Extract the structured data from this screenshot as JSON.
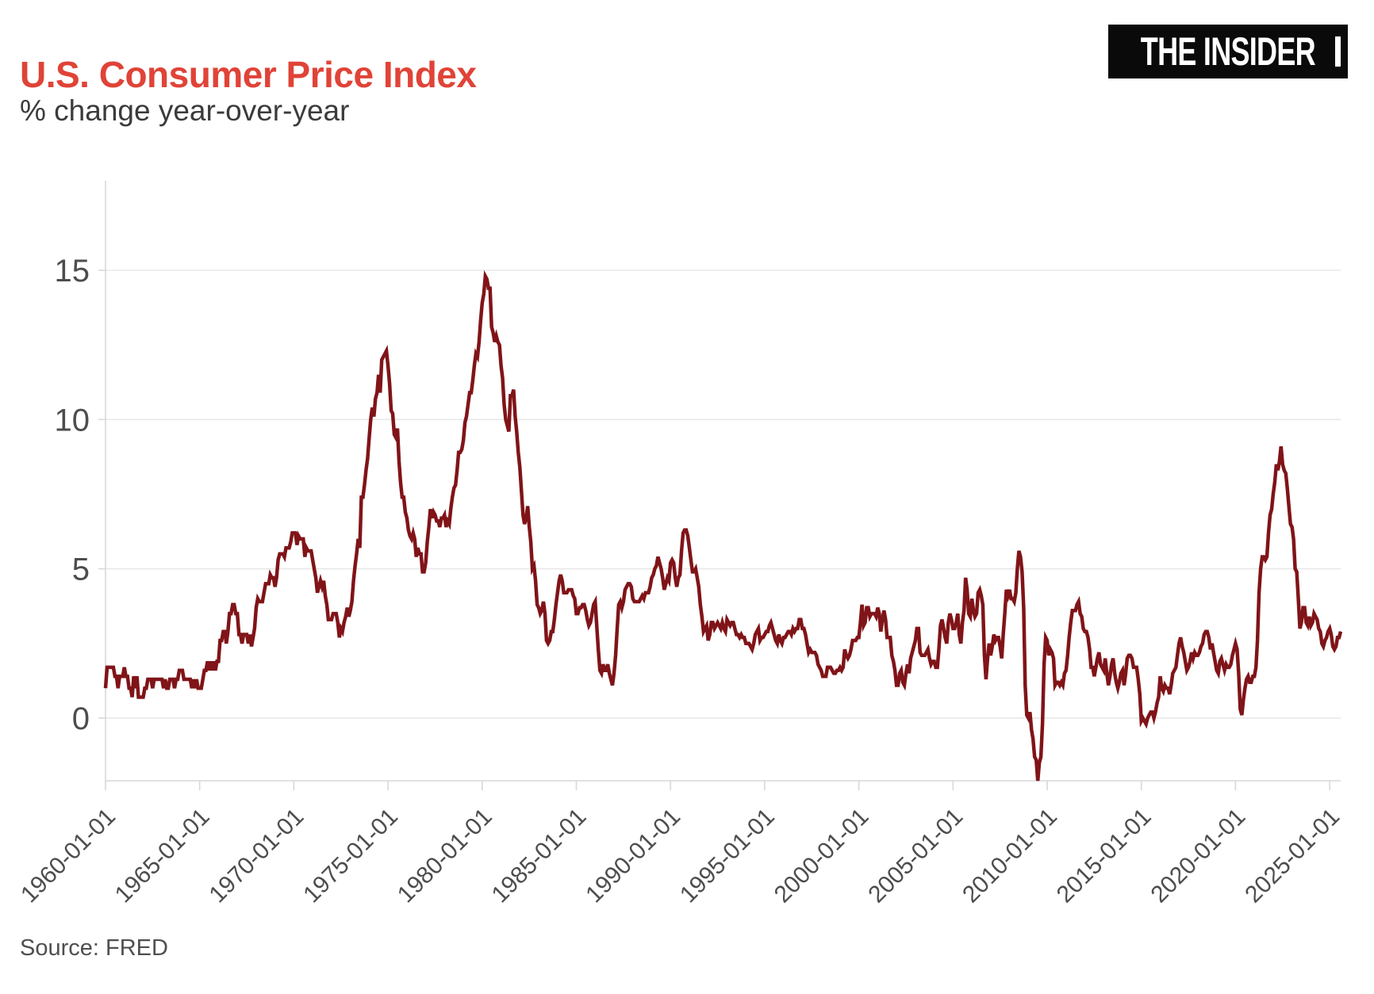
{
  "header": {
    "title": "U.S. Consumer Price Index",
    "subtitle": "% change year-over-year",
    "logo_text": "THE INSIDER"
  },
  "footer": {
    "source": "Source: FRED"
  },
  "colors": {
    "title_red": "#e04337",
    "line_dark_red": "#801418",
    "logo_bg": "#0a0a0a",
    "logo_text": "#ffffff",
    "axis_text": "#4d4d4d",
    "gridline": "#e8e8e8",
    "spine": "#d8d8d8",
    "background": "#ffffff"
  },
  "chart_data": {
    "type": "line",
    "title": "U.S. Consumer Price Index",
    "subtitle": "% change year-over-year",
    "source": "Source: FRED",
    "xlabel": "",
    "ylabel": "",
    "legend": "none",
    "grid": "horizontal-only",
    "ylim": [
      -2.1,
      18.0
    ],
    "y_ticks": [
      0,
      5,
      10,
      15
    ],
    "y_tick_labels": [
      "0",
      "5",
      "10",
      "15"
    ],
    "x_tick_labels": [
      "1960-01-01",
      "1965-01-01",
      "1970-01-01",
      "1975-01-01",
      "1980-01-01",
      "1985-01-01",
      "1990-01-01",
      "1995-01-01",
      "2000-01-01",
      "2005-01-01",
      "2010-01-01",
      "2015-01-01",
      "2020-01-01",
      "2025-01-01"
    ],
    "x_range": [
      "1960-01",
      "2025-08"
    ],
    "series": [
      {
        "name": "CPI % change year-over-year",
        "color": "#801418",
        "start": "1960-01",
        "frequency": "monthly",
        "values": [
          1.0,
          1.7,
          1.7,
          1.7,
          1.7,
          1.7,
          1.4,
          1.4,
          1.0,
          1.4,
          1.4,
          1.4,
          1.7,
          1.4,
          1.4,
          1.0,
          1.0,
          0.7,
          1.4,
          1.0,
          1.4,
          0.7,
          0.7,
          0.7,
          0.7,
          1.0,
          1.0,
          1.3,
          1.3,
          1.3,
          1.0,
          1.3,
          1.3,
          1.3,
          1.3,
          1.3,
          1.3,
          1.0,
          1.3,
          1.0,
          1.0,
          1.3,
          1.3,
          1.3,
          1.0,
          1.3,
          1.3,
          1.6,
          1.6,
          1.6,
          1.3,
          1.3,
          1.3,
          1.3,
          1.3,
          1.0,
          1.3,
          1.0,
          1.3,
          1.0,
          1.0,
          1.0,
          1.3,
          1.6,
          1.6,
          1.9,
          1.6,
          1.9,
          1.6,
          1.9,
          1.6,
          1.9,
          1.9,
          2.6,
          2.6,
          2.9,
          2.9,
          2.5,
          2.9,
          3.5,
          3.5,
          3.8,
          3.8,
          3.5,
          3.5,
          2.8,
          2.8,
          2.5,
          2.8,
          2.8,
          2.8,
          2.5,
          2.8,
          2.4,
          2.7,
          3.0,
          3.7,
          4.0,
          3.9,
          3.9,
          3.9,
          4.2,
          4.5,
          4.5,
          4.5,
          4.8,
          4.7,
          4.7,
          4.4,
          4.7,
          5.3,
          5.5,
          5.5,
          5.5,
          5.4,
          5.7,
          5.7,
          5.7,
          5.9,
          6.2,
          6.2,
          6.2,
          5.8,
          6.1,
          6.0,
          6.0,
          6.0,
          5.4,
          5.7,
          5.6,
          5.6,
          5.6,
          5.3,
          5.0,
          4.7,
          4.2,
          4.4,
          4.6,
          4.4,
          4.6,
          4.1,
          3.8,
          3.3,
          3.3,
          3.3,
          3.5,
          3.5,
          3.5,
          3.2,
          2.7,
          3.0,
          2.9,
          3.2,
          3.4,
          3.7,
          3.4,
          3.6,
          3.9,
          4.6,
          5.1,
          5.5,
          6.0,
          5.7,
          7.4,
          7.4,
          7.8,
          8.3,
          8.7,
          9.4,
          10.0,
          10.4,
          10.1,
          10.7,
          10.9,
          11.5,
          10.9,
          12.0,
          12.1,
          12.2,
          12.3,
          11.8,
          11.2,
          10.3,
          10.2,
          9.5,
          9.4,
          9.7,
          8.6,
          7.9,
          7.4,
          7.4,
          6.9,
          6.7,
          6.3,
          6.1,
          6.0,
          6.2,
          6.0,
          5.4,
          5.7,
          5.5,
          5.5,
          4.9,
          4.9,
          5.2,
          5.9,
          6.4,
          7.0,
          6.7,
          6.9,
          6.8,
          6.6,
          6.6,
          6.4,
          6.7,
          6.7,
          6.8,
          6.4,
          6.6,
          6.5,
          7.0,
          7.4,
          7.7,
          7.8,
          8.3,
          8.9,
          8.9,
          9.0,
          9.3,
          9.9,
          10.1,
          10.5,
          10.9,
          10.9,
          11.3,
          11.8,
          12.2,
          12.1,
          12.6,
          13.3,
          13.9,
          14.2,
          14.8,
          14.7,
          14.4,
          14.4,
          13.1,
          12.9,
          12.6,
          12.8,
          12.6,
          12.5,
          11.8,
          11.4,
          10.5,
          10.0,
          9.8,
          9.6,
          10.8,
          10.8,
          11.0,
          10.1,
          9.6,
          8.9,
          8.4,
          7.6,
          6.8,
          6.5,
          6.7,
          7.1,
          6.4,
          5.9,
          5.0,
          5.1,
          4.6,
          3.8,
          3.7,
          3.5,
          3.6,
          3.9,
          3.5,
          2.6,
          2.5,
          2.6,
          2.9,
          2.9,
          3.3,
          3.8,
          4.2,
          4.6,
          4.8,
          4.6,
          4.2,
          4.2,
          4.2,
          4.3,
          4.3,
          4.3,
          4.1,
          4.0,
          3.5,
          3.5,
          3.7,
          3.7,
          3.8,
          3.8,
          3.6,
          3.3,
          3.1,
          3.2,
          3.5,
          3.8,
          3.9,
          3.1,
          2.3,
          1.6,
          1.5,
          1.8,
          1.6,
          1.6,
          1.8,
          1.5,
          1.3,
          1.1,
          1.5,
          2.1,
          3.0,
          3.8,
          3.9,
          3.7,
          3.9,
          4.3,
          4.4,
          4.5,
          4.5,
          4.4,
          4.0,
          3.9,
          3.9,
          3.9,
          3.9,
          4.0,
          4.1,
          4.0,
          4.2,
          4.2,
          4.2,
          4.4,
          4.7,
          4.8,
          5.0,
          5.1,
          5.4,
          5.2,
          5.0,
          4.7,
          4.3,
          4.5,
          4.7,
          4.6,
          5.2,
          5.3,
          5.2,
          4.7,
          4.4,
          4.7,
          4.8,
          5.6,
          6.2,
          6.3,
          6.3,
          6.1,
          5.7,
          5.3,
          4.9,
          4.9,
          5.0,
          4.7,
          4.4,
          3.8,
          3.4,
          2.9,
          3.0,
          3.1,
          2.6,
          2.8,
          3.2,
          3.2,
          3.0,
          3.1,
          3.2,
          3.1,
          3.0,
          3.2,
          3.0,
          2.9,
          3.3,
          3.2,
          3.1,
          3.2,
          3.2,
          3.0,
          2.8,
          2.8,
          2.7,
          2.8,
          2.7,
          2.7,
          2.5,
          2.5,
          2.5,
          2.4,
          2.3,
          2.5,
          2.8,
          2.9,
          3.0,
          2.6,
          2.7,
          2.7,
          2.8,
          2.9,
          2.9,
          3.1,
          3.2,
          3.0,
          2.8,
          2.6,
          2.5,
          2.8,
          2.6,
          2.5,
          2.7,
          2.7,
          2.8,
          2.9,
          2.9,
          2.8,
          3.0,
          2.9,
          3.0,
          3.0,
          3.3,
          3.3,
          3.0,
          3.0,
          2.8,
          2.5,
          2.2,
          2.3,
          2.2,
          2.2,
          2.2,
          2.1,
          1.8,
          1.7,
          1.6,
          1.4,
          1.4,
          1.4,
          1.7,
          1.7,
          1.7,
          1.6,
          1.5,
          1.5,
          1.6,
          1.6,
          1.7,
          1.6,
          1.7,
          2.3,
          2.1,
          2.0,
          2.1,
          2.3,
          2.6,
          2.6,
          2.6,
          2.7,
          2.7,
          3.2,
          3.8,
          3.1,
          3.2,
          3.7,
          3.7,
          3.4,
          3.5,
          3.5,
          3.5,
          3.4,
          3.7,
          3.5,
          2.9,
          3.3,
          3.6,
          3.3,
          2.7,
          2.7,
          2.7,
          2.1,
          1.9,
          1.6,
          1.1,
          1.1,
          1.5,
          1.6,
          1.2,
          1.1,
          1.5,
          1.8,
          1.5,
          2.0,
          2.2,
          2.4,
          2.6,
          3.0,
          3.0,
          2.2,
          2.1,
          2.1,
          2.1,
          2.2,
          2.3,
          2.0,
          1.8,
          1.9,
          1.9,
          1.7,
          1.7,
          2.3,
          3.1,
          3.3,
          3.0,
          2.7,
          2.5,
          3.2,
          3.5,
          3.3,
          3.0,
          3.0,
          3.2,
          3.5,
          2.8,
          2.5,
          3.2,
          3.6,
          4.7,
          4.3,
          3.5,
          3.4,
          4.0,
          3.6,
          3.4,
          3.5,
          4.2,
          4.3,
          4.1,
          3.8,
          2.1,
          1.3,
          2.0,
          2.5,
          2.1,
          2.4,
          2.8,
          2.6,
          2.7,
          2.7,
          2.4,
          2.0,
          2.8,
          3.5,
          4.3,
          4.1,
          4.3,
          4.0,
          4.0,
          3.9,
          4.2,
          5.0,
          5.6,
          5.4,
          4.9,
          3.7,
          1.1,
          0.1,
          0.0,
          0.2,
          -0.4,
          -0.7,
          -1.3,
          -1.4,
          -2.1,
          -1.5,
          -1.3,
          -0.2,
          1.8,
          2.7,
          2.6,
          2.1,
          2.3,
          2.2,
          2.0,
          1.1,
          1.2,
          1.2,
          1.1,
          1.2,
          1.1,
          1.5,
          1.6,
          2.1,
          2.7,
          3.2,
          3.6,
          3.6,
          3.6,
          3.8,
          3.9,
          3.5,
          3.4,
          3.0,
          2.9,
          2.9,
          2.7,
          2.3,
          1.7,
          1.7,
          1.4,
          1.7,
          2.0,
          2.2,
          1.8,
          1.7,
          1.6,
          2.0,
          1.5,
          1.1,
          1.4,
          1.8,
          2.0,
          1.5,
          1.2,
          1.0,
          1.2,
          1.5,
          1.6,
          1.1,
          1.5,
          2.0,
          2.1,
          2.1,
          2.0,
          1.7,
          1.7,
          1.7,
          1.3,
          0.8,
          -0.1,
          0.0,
          -0.1,
          -0.2,
          0.0,
          0.1,
          0.2,
          0.2,
          0.0,
          0.2,
          0.5,
          0.7,
          1.4,
          1.0,
          0.9,
          1.1,
          1.0,
          1.0,
          0.8,
          1.1,
          1.5,
          1.6,
          1.7,
          2.1,
          2.5,
          2.7,
          2.4,
          2.2,
          1.9,
          1.6,
          1.7,
          1.9,
          2.2,
          2.0,
          2.2,
          2.1,
          2.1,
          2.2,
          2.4,
          2.5,
          2.8,
          2.9,
          2.9,
          2.7,
          2.3,
          2.5,
          2.2,
          1.9,
          1.6,
          1.5,
          1.9,
          2.0,
          1.8,
          1.6,
          1.8,
          1.7,
          1.7,
          1.8,
          2.1,
          2.3,
          2.5,
          2.3,
          1.5,
          0.3,
          0.1,
          0.6,
          1.0,
          1.3,
          1.4,
          1.2,
          1.2,
          1.4,
          1.4,
          1.7,
          2.6,
          4.2,
          5.0,
          5.4,
          5.4,
          5.3,
          5.4,
          6.2,
          6.8,
          7.0,
          7.5,
          7.9,
          8.5,
          8.3,
          8.6,
          9.1,
          8.5,
          8.3,
          8.2,
          7.7,
          7.1,
          6.5,
          6.4,
          6.0,
          5.0,
          4.9,
          4.0,
          3.0,
          3.2,
          3.7,
          3.7,
          3.2,
          3.1,
          3.4,
          3.1,
          3.2,
          3.5,
          3.4,
          3.3,
          3.0,
          2.9,
          2.5,
          2.4,
          2.6,
          2.7,
          2.9,
          3.0,
          2.8,
          2.4,
          2.3,
          2.4,
          2.7,
          2.7,
          2.9
        ]
      }
    ]
  }
}
